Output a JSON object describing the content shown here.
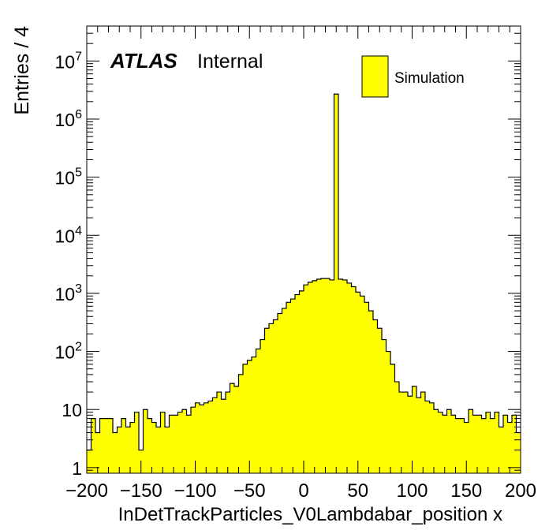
{
  "chart_data": {
    "type": "bar",
    "title": "",
    "xlabel": "InDetTrackParticles_V0Lambdabar_position x",
    "ylabel": "Entries / 4",
    "xlim": [
      -200,
      200
    ],
    "ylim": [
      0.8,
      40000000
    ],
    "yscale": "log",
    "bin_width": 4,
    "fill_color": "#ffff00",
    "edge_color": "#000000",
    "x_ticks": [
      -200,
      -150,
      -100,
      -50,
      0,
      50,
      100,
      150,
      200
    ],
    "x_tick_labels": [
      "−200",
      "−150",
      "−100",
      "−50",
      "0",
      "50",
      "100",
      "150",
      "200"
    ],
    "y_ticks": [
      1,
      10,
      100,
      1000,
      10000,
      100000,
      1000000,
      10000000
    ],
    "y_tick_labels": [
      {
        "base": "1",
        "exp": ""
      },
      {
        "base": "10",
        "exp": ""
      },
      {
        "base": "10",
        "exp": "2"
      },
      {
        "base": "10",
        "exp": "3"
      },
      {
        "base": "10",
        "exp": "4"
      },
      {
        "base": "10",
        "exp": "5"
      },
      {
        "base": "10",
        "exp": "6"
      },
      {
        "base": "10",
        "exp": "7"
      }
    ],
    "atlas_label": "ATLAS",
    "atlas_sublabel": "Internal",
    "legend": {
      "entries": [
        "Simulation"
      ],
      "position": "top-right"
    },
    "bin_edges_start": -200,
    "values": [
      2,
      7,
      4,
      7,
      7,
      7,
      4,
      5,
      7,
      5,
      6,
      9,
      2,
      10,
      7,
      6,
      5,
      9,
      5,
      8,
      8,
      9,
      10,
      8,
      11,
      13,
      12,
      13,
      14,
      16,
      20,
      15,
      20,
      28,
      25,
      40,
      60,
      70,
      80,
      110,
      160,
      250,
      300,
      350,
      450,
      550,
      700,
      800,
      950,
      1100,
      1400,
      1550,
      1650,
      1750,
      1800,
      1800,
      1700,
      2700000,
      1750,
      1700,
      1500,
      1300,
      1050,
      900,
      700,
      500,
      350,
      250,
      160,
      100,
      60,
      30,
      20,
      20,
      17,
      25,
      16,
      20,
      14,
      13,
      10,
      9,
      8,
      10,
      8,
      7,
      7,
      6,
      10,
      8,
      8,
      7,
      9,
      7,
      9,
      5,
      8,
      6,
      8,
      4
    ]
  }
}
